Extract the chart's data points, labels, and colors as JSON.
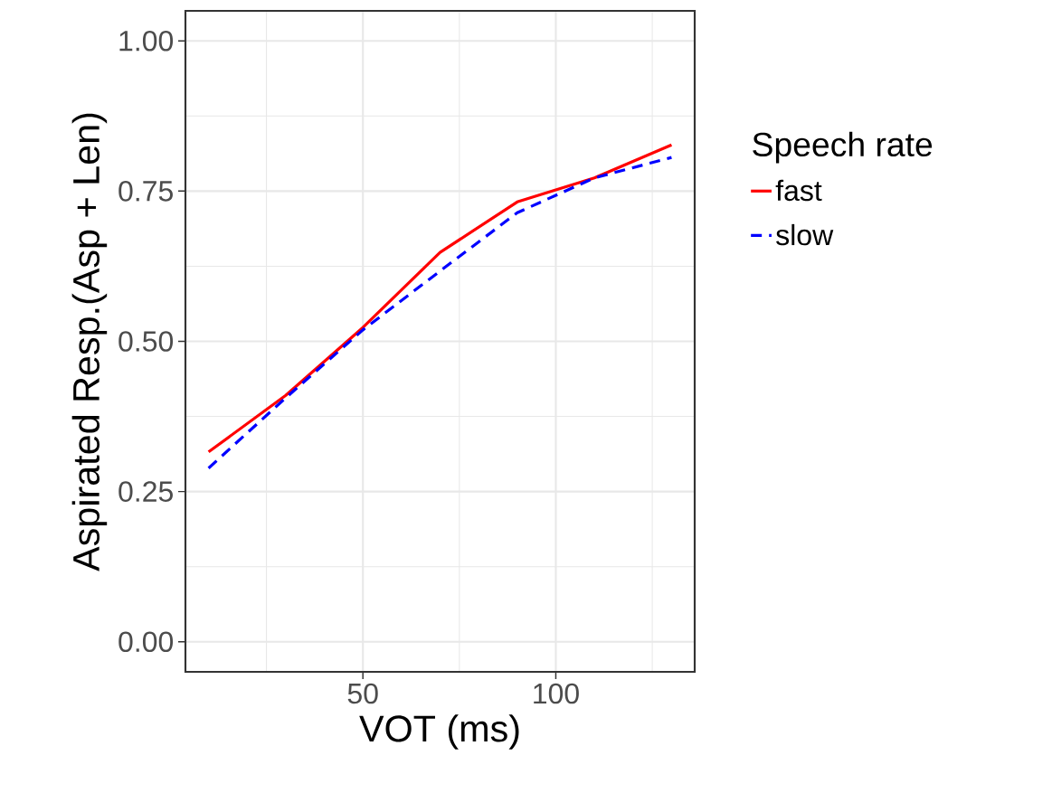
{
  "chart_data": {
    "type": "line",
    "xlabel": "VOT (ms)",
    "ylabel": "Aspirated Resp.(Asp + Len)",
    "legend_title": "Speech rate",
    "x": [
      10,
      30,
      50,
      70,
      90,
      110,
      130
    ],
    "series": [
      {
        "name": "fast",
        "color": "#ff0000",
        "line_style": "solid",
        "values": [
          0.316,
          0.41,
          0.523,
          0.648,
          0.732,
          0.772,
          0.827
        ]
      },
      {
        "name": "slow",
        "color": "#0000ff",
        "line_style": "dashed",
        "values": [
          0.289,
          0.406,
          0.519,
          0.617,
          0.714,
          0.772,
          0.806
        ]
      }
    ],
    "xlim": [
      4,
      136
    ],
    "ylim": [
      -0.05,
      1.05
    ],
    "xticks": [
      50,
      100
    ],
    "yticks": [
      {
        "value": 0,
        "label": "0.00"
      },
      {
        "value": 0.25,
        "label": "0.25"
      },
      {
        "value": 0.5,
        "label": "0.50"
      },
      {
        "value": 0.75,
        "label": "0.75"
      },
      {
        "value": 1,
        "label": "1.00"
      }
    ],
    "grid": true,
    "legend": "right",
    "marker": "none"
  }
}
